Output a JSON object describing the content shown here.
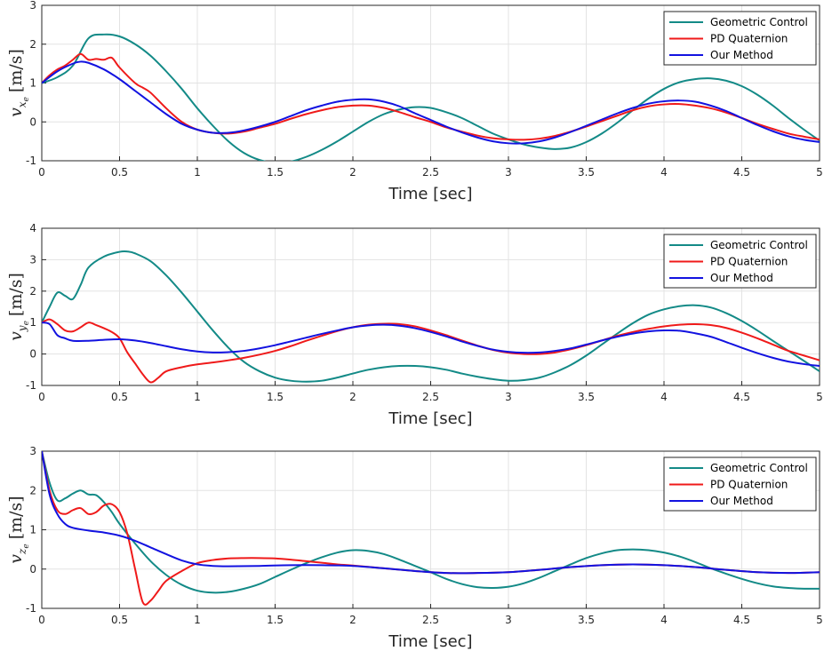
{
  "colors": {
    "geometric": "#138a87",
    "pd": "#ef1a1a",
    "ours": "#1212e0"
  },
  "chart_data": [
    {
      "type": "line",
      "ylabel_base": "v",
      "ylabel_sub": "x",
      "ylabel_subsub": "e",
      "ylabel_unit": "[m/s]",
      "xlabel": "Time [sec]",
      "xlim": [
        0,
        5
      ],
      "ylim": [
        -1,
        3
      ],
      "xticks": [
        "0",
        "0.5",
        "1",
        "1.5",
        "2",
        "2.5",
        "3",
        "3.5",
        "4",
        "4.5",
        "5"
      ],
      "yticks": [
        "-1",
        "0",
        "1",
        "2",
        "3"
      ],
      "grid": true,
      "legend_position": "top-right",
      "series": [
        {
          "name": "Geometric Control",
          "color_key": "geometric",
          "x": [
            0,
            0.1,
            0.2,
            0.3,
            0.4,
            0.5,
            0.6,
            0.7,
            0.8,
            0.9,
            1.0,
            1.1,
            1.2,
            1.3,
            1.4,
            1.5,
            1.6,
            1.7,
            1.8,
            1.9,
            2.0,
            2.1,
            2.2,
            2.3,
            2.4,
            2.5,
            2.6,
            2.7,
            2.8,
            2.9,
            3.0,
            3.1,
            3.2,
            3.3,
            3.4,
            3.5,
            3.6,
            3.7,
            3.8,
            3.9,
            4.0,
            4.1,
            4.2,
            4.3,
            4.4,
            4.5,
            4.6,
            4.7,
            4.8,
            4.9,
            5.0
          ],
          "y": [
            1.0,
            1.15,
            1.45,
            2.15,
            2.25,
            2.2,
            2.0,
            1.7,
            1.3,
            0.85,
            0.35,
            -0.1,
            -0.5,
            -0.8,
            -0.98,
            -1.05,
            -1.02,
            -0.9,
            -0.72,
            -0.5,
            -0.25,
            0.0,
            0.2,
            0.32,
            0.38,
            0.36,
            0.25,
            0.1,
            -0.1,
            -0.3,
            -0.45,
            -0.58,
            -0.66,
            -0.7,
            -0.66,
            -0.52,
            -0.3,
            -0.02,
            0.3,
            0.6,
            0.85,
            1.02,
            1.1,
            1.12,
            1.06,
            0.92,
            0.7,
            0.42,
            0.1,
            -0.2,
            -0.48
          ]
        },
        {
          "name": "PD Quaternion",
          "color_key": "pd",
          "x": [
            0,
            0.05,
            0.1,
            0.15,
            0.2,
            0.25,
            0.3,
            0.35,
            0.4,
            0.45,
            0.5,
            0.6,
            0.65,
            0.7,
            0.8,
            0.9,
            1.0,
            1.1,
            1.2,
            1.3,
            1.4,
            1.5,
            1.6,
            1.7,
            1.8,
            1.9,
            2.0,
            2.1,
            2.2,
            2.3,
            2.4,
            2.5,
            2.6,
            2.7,
            2.8,
            2.9,
            3.0,
            3.1,
            3.2,
            3.3,
            3.4,
            3.5,
            3.6,
            3.7,
            3.8,
            3.9,
            4.0,
            4.1,
            4.2,
            4.3,
            4.4,
            4.5,
            4.6,
            4.7,
            4.8,
            4.9,
            5.0
          ],
          "y": [
            1.0,
            1.2,
            1.35,
            1.45,
            1.6,
            1.75,
            1.6,
            1.62,
            1.6,
            1.65,
            1.4,
            1.0,
            0.88,
            0.75,
            0.35,
            0.0,
            -0.2,
            -0.28,
            -0.3,
            -0.25,
            -0.15,
            -0.05,
            0.08,
            0.2,
            0.3,
            0.38,
            0.42,
            0.42,
            0.36,
            0.25,
            0.12,
            0.0,
            -0.14,
            -0.25,
            -0.35,
            -0.42,
            -0.45,
            -0.46,
            -0.43,
            -0.36,
            -0.25,
            -0.12,
            0.02,
            0.16,
            0.3,
            0.4,
            0.45,
            0.46,
            0.42,
            0.35,
            0.24,
            0.1,
            -0.05,
            -0.18,
            -0.3,
            -0.38,
            -0.45
          ]
        },
        {
          "name": "Our Method",
          "color_key": "ours",
          "x": [
            0,
            0.1,
            0.2,
            0.25,
            0.3,
            0.4,
            0.5,
            0.6,
            0.7,
            0.8,
            0.9,
            1.0,
            1.1,
            1.2,
            1.3,
            1.4,
            1.5,
            1.6,
            1.7,
            1.8,
            1.9,
            2.0,
            2.1,
            2.2,
            2.3,
            2.4,
            2.5,
            2.6,
            2.7,
            2.8,
            2.9,
            3.0,
            3.1,
            3.2,
            3.3,
            3.4,
            3.5,
            3.6,
            3.7,
            3.8,
            3.9,
            4.0,
            4.1,
            4.2,
            4.3,
            4.4,
            4.5,
            4.6,
            4.7,
            4.8,
            4.9,
            5.0
          ],
          "y": [
            1.0,
            1.3,
            1.5,
            1.55,
            1.52,
            1.35,
            1.1,
            0.8,
            0.5,
            0.2,
            -0.05,
            -0.2,
            -0.28,
            -0.28,
            -0.22,
            -0.12,
            0.0,
            0.15,
            0.3,
            0.42,
            0.52,
            0.57,
            0.58,
            0.52,
            0.4,
            0.22,
            0.05,
            -0.12,
            -0.27,
            -0.4,
            -0.5,
            -0.55,
            -0.55,
            -0.5,
            -0.4,
            -0.26,
            -0.1,
            0.06,
            0.22,
            0.36,
            0.47,
            0.53,
            0.55,
            0.52,
            0.42,
            0.28,
            0.1,
            -0.08,
            -0.24,
            -0.37,
            -0.46,
            -0.52
          ]
        }
      ]
    },
    {
      "type": "line",
      "ylabel_base": "v",
      "ylabel_sub": "y",
      "ylabel_subsub": "e",
      "ylabel_unit": "[m/s]",
      "xlabel": "Time [sec]",
      "xlim": [
        0,
        5
      ],
      "ylim": [
        -1,
        4
      ],
      "xticks": [
        "0",
        "0.5",
        "1",
        "1.5",
        "2",
        "2.5",
        "3",
        "3.5",
        "4",
        "4.5",
        "5"
      ],
      "yticks": [
        "-1",
        "0",
        "1",
        "2",
        "3",
        "4"
      ],
      "grid": true,
      "legend_position": "top-right",
      "series": [
        {
          "name": "Geometric Control",
          "color_key": "geometric",
          "x": [
            0,
            0.05,
            0.1,
            0.15,
            0.2,
            0.25,
            0.3,
            0.4,
            0.5,
            0.55,
            0.6,
            0.7,
            0.8,
            0.9,
            1.0,
            1.1,
            1.2,
            1.3,
            1.4,
            1.5,
            1.6,
            1.7,
            1.8,
            1.9,
            2.0,
            2.1,
            2.2,
            2.3,
            2.4,
            2.5,
            2.6,
            2.7,
            2.8,
            2.9,
            3.0,
            3.1,
            3.2,
            3.3,
            3.4,
            3.5,
            3.6,
            3.7,
            3.8,
            3.9,
            4.0,
            4.1,
            4.2,
            4.3,
            4.4,
            4.5,
            4.6,
            4.7,
            4.8,
            4.9,
            5.0
          ],
          "y": [
            1.0,
            1.5,
            1.95,
            1.85,
            1.75,
            2.2,
            2.75,
            3.1,
            3.25,
            3.26,
            3.2,
            2.95,
            2.5,
            1.95,
            1.35,
            0.75,
            0.2,
            -0.25,
            -0.55,
            -0.75,
            -0.85,
            -0.88,
            -0.85,
            -0.75,
            -0.62,
            -0.5,
            -0.42,
            -0.38,
            -0.38,
            -0.42,
            -0.5,
            -0.62,
            -0.72,
            -0.8,
            -0.85,
            -0.83,
            -0.75,
            -0.58,
            -0.35,
            -0.05,
            0.3,
            0.65,
            0.98,
            1.25,
            1.42,
            1.52,
            1.55,
            1.48,
            1.3,
            1.05,
            0.75,
            0.42,
            0.1,
            -0.22,
            -0.55
          ]
        },
        {
          "name": "PD Quaternion",
          "color_key": "pd",
          "x": [
            0,
            0.05,
            0.1,
            0.15,
            0.2,
            0.25,
            0.3,
            0.35,
            0.4,
            0.45,
            0.5,
            0.55,
            0.6,
            0.65,
            0.7,
            0.75,
            0.8,
            0.9,
            1.0,
            1.1,
            1.2,
            1.3,
            1.4,
            1.5,
            1.6,
            1.7,
            1.8,
            1.9,
            2.0,
            2.1,
            2.2,
            2.3,
            2.4,
            2.5,
            2.6,
            2.7,
            2.8,
            2.9,
            3.0,
            3.1,
            3.2,
            3.3,
            3.4,
            3.5,
            3.6,
            3.7,
            3.8,
            3.9,
            4.0,
            4.1,
            4.2,
            4.3,
            4.4,
            4.5,
            4.6,
            4.7,
            4.8,
            4.9,
            5.0
          ],
          "y": [
            1.0,
            1.1,
            0.95,
            0.75,
            0.72,
            0.85,
            1.0,
            0.92,
            0.82,
            0.7,
            0.5,
            0.05,
            -0.3,
            -0.65,
            -0.9,
            -0.75,
            -0.55,
            -0.42,
            -0.33,
            -0.27,
            -0.2,
            -0.12,
            -0.02,
            0.1,
            0.25,
            0.42,
            0.58,
            0.73,
            0.85,
            0.93,
            0.96,
            0.95,
            0.88,
            0.75,
            0.6,
            0.43,
            0.27,
            0.13,
            0.04,
            0.0,
            0.0,
            0.05,
            0.15,
            0.28,
            0.43,
            0.58,
            0.7,
            0.8,
            0.88,
            0.93,
            0.95,
            0.92,
            0.83,
            0.68,
            0.5,
            0.3,
            0.1,
            -0.05,
            -0.2
          ]
        },
        {
          "name": "Our Method",
          "color_key": "ours",
          "x": [
            0,
            0.05,
            0.1,
            0.15,
            0.2,
            0.3,
            0.4,
            0.5,
            0.6,
            0.7,
            0.8,
            0.9,
            1.0,
            1.1,
            1.2,
            1.3,
            1.4,
            1.5,
            1.6,
            1.7,
            1.8,
            1.9,
            2.0,
            2.1,
            2.2,
            2.3,
            2.4,
            2.5,
            2.6,
            2.7,
            2.8,
            2.9,
            3.0,
            3.1,
            3.2,
            3.3,
            3.4,
            3.5,
            3.6,
            3.7,
            3.8,
            3.9,
            4.0,
            4.1,
            4.2,
            4.3,
            4.4,
            4.5,
            4.6,
            4.7,
            4.8,
            4.9,
            5.0
          ],
          "y": [
            1.0,
            0.95,
            0.6,
            0.5,
            0.42,
            0.42,
            0.45,
            0.47,
            0.43,
            0.35,
            0.25,
            0.15,
            0.08,
            0.05,
            0.06,
            0.1,
            0.18,
            0.28,
            0.4,
            0.52,
            0.64,
            0.75,
            0.85,
            0.91,
            0.93,
            0.9,
            0.82,
            0.7,
            0.56,
            0.4,
            0.26,
            0.14,
            0.07,
            0.04,
            0.05,
            0.1,
            0.18,
            0.3,
            0.43,
            0.55,
            0.65,
            0.72,
            0.75,
            0.74,
            0.66,
            0.55,
            0.38,
            0.2,
            0.03,
            -0.12,
            -0.24,
            -0.32,
            -0.38
          ]
        }
      ]
    },
    {
      "type": "line",
      "ylabel_base": "v",
      "ylabel_sub": "z",
      "ylabel_subsub": "e",
      "ylabel_unit": "[m/s]",
      "xlabel": "Time [sec]",
      "xlim": [
        0,
        5
      ],
      "ylim": [
        -1,
        3
      ],
      "xticks": [
        "0",
        "0.5",
        "1",
        "1.5",
        "2",
        "2.5",
        "3",
        "3.5",
        "4",
        "4.5",
        "5"
      ],
      "yticks": [
        "-1",
        "0",
        "1",
        "2",
        "3"
      ],
      "grid": true,
      "legend_position": "top-right",
      "series": [
        {
          "name": "Geometric Control",
          "color_key": "geometric",
          "x": [
            0,
            0.05,
            0.1,
            0.15,
            0.2,
            0.25,
            0.3,
            0.35,
            0.4,
            0.45,
            0.5,
            0.6,
            0.7,
            0.8,
            0.9,
            1.0,
            1.1,
            1.2,
            1.3,
            1.4,
            1.5,
            1.6,
            1.7,
            1.8,
            1.9,
            2.0,
            2.1,
            2.2,
            2.3,
            2.4,
            2.5,
            2.6,
            2.7,
            2.8,
            2.9,
            3.0,
            3.1,
            3.2,
            3.3,
            3.4,
            3.5,
            3.6,
            3.7,
            3.8,
            3.9,
            4.0,
            4.1,
            4.2,
            4.3,
            4.4,
            4.5,
            4.6,
            4.7,
            4.8,
            4.9,
            5.0
          ],
          "y": [
            3.0,
            2.2,
            1.75,
            1.8,
            1.92,
            2.0,
            1.9,
            1.88,
            1.7,
            1.45,
            1.15,
            0.65,
            0.2,
            -0.15,
            -0.4,
            -0.55,
            -0.6,
            -0.58,
            -0.5,
            -0.38,
            -0.2,
            -0.02,
            0.15,
            0.3,
            0.42,
            0.48,
            0.46,
            0.38,
            0.24,
            0.08,
            -0.08,
            -0.25,
            -0.38,
            -0.46,
            -0.48,
            -0.45,
            -0.36,
            -0.22,
            -0.05,
            0.12,
            0.28,
            0.4,
            0.48,
            0.5,
            0.48,
            0.42,
            0.32,
            0.18,
            0.02,
            -0.12,
            -0.25,
            -0.36,
            -0.44,
            -0.48,
            -0.5,
            -0.5
          ]
        },
        {
          "name": "PD Quaternion",
          "color_key": "pd",
          "x": [
            0,
            0.05,
            0.1,
            0.15,
            0.2,
            0.25,
            0.3,
            0.35,
            0.4,
            0.45,
            0.5,
            0.55,
            0.6,
            0.65,
            0.7,
            0.75,
            0.8,
            0.9,
            1.0,
            1.1,
            1.2,
            1.3,
            1.4,
            1.5,
            1.6,
            1.7,
            1.8,
            1.9,
            2.0,
            2.2,
            2.4,
            2.6,
            2.8,
            3.0,
            3.2,
            3.4,
            3.6,
            3.8,
            4.0,
            4.2,
            4.4,
            4.6,
            4.8,
            5.0
          ],
          "y": [
            3.0,
            2.0,
            1.5,
            1.4,
            1.5,
            1.55,
            1.4,
            1.45,
            1.62,
            1.65,
            1.45,
            0.9,
            0.0,
            -0.85,
            -0.8,
            -0.55,
            -0.3,
            -0.05,
            0.15,
            0.23,
            0.27,
            0.28,
            0.28,
            0.27,
            0.24,
            0.2,
            0.16,
            0.12,
            0.09,
            0.02,
            -0.05,
            -0.1,
            -0.1,
            -0.08,
            -0.02,
            0.05,
            0.1,
            0.12,
            0.1,
            0.05,
            -0.02,
            -0.08,
            -0.1,
            -0.08
          ]
        },
        {
          "name": "Our Method",
          "color_key": "ours",
          "x": [
            0,
            0.05,
            0.1,
            0.15,
            0.2,
            0.3,
            0.4,
            0.5,
            0.6,
            0.7,
            0.8,
            0.9,
            1.0,
            1.1,
            1.2,
            1.4,
            1.6,
            1.8,
            2.0,
            2.2,
            2.4,
            2.6,
            2.8,
            3.0,
            3.2,
            3.4,
            3.6,
            3.8,
            4.0,
            4.2,
            4.4,
            4.6,
            4.8,
            5.0
          ],
          "y": [
            3.0,
            1.9,
            1.4,
            1.15,
            1.05,
            0.98,
            0.93,
            0.85,
            0.72,
            0.55,
            0.38,
            0.22,
            0.12,
            0.08,
            0.07,
            0.08,
            0.1,
            0.1,
            0.08,
            0.02,
            -0.05,
            -0.1,
            -0.1,
            -0.08,
            -0.02,
            0.05,
            0.1,
            0.12,
            0.1,
            0.05,
            -0.02,
            -0.08,
            -0.1,
            -0.08
          ]
        }
      ]
    }
  ]
}
